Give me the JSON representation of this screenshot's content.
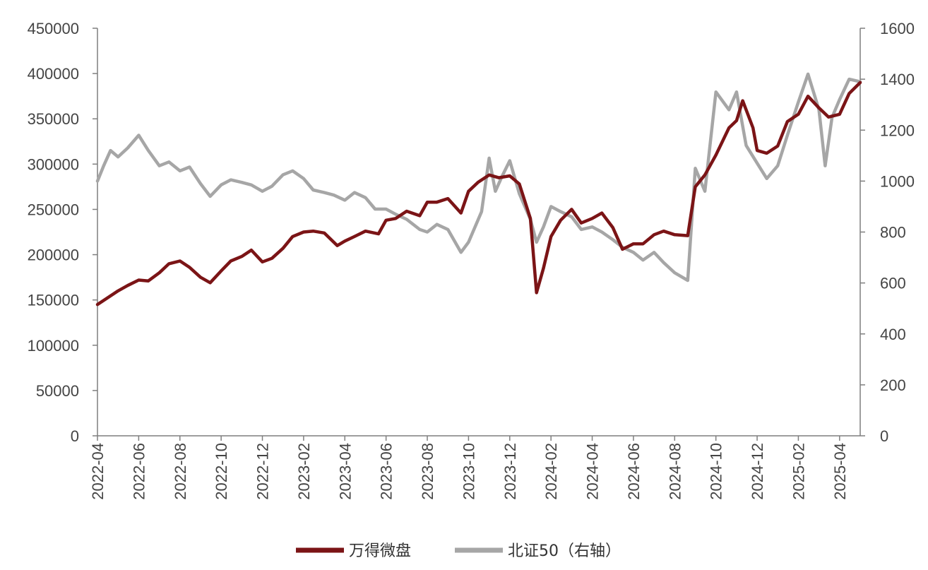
{
  "chart_data": {
    "type": "line",
    "x_axis": {
      "tick_labels": [
        "2022-04",
        "2022-06",
        "2022-08",
        "2022-10",
        "2022-12",
        "2023-02",
        "2023-04",
        "2023-06",
        "2023-08",
        "2023-10",
        "2023-12",
        "2024-02",
        "2024-04",
        "2024-06",
        "2024-08",
        "2024-10",
        "2024-12",
        "2025-02",
        "2025-04"
      ],
      "range": [
        "2022-04",
        "2025-05"
      ]
    },
    "y_left": {
      "ticks": [
        0,
        50000,
        100000,
        150000,
        200000,
        250000,
        300000,
        350000,
        400000,
        450000
      ],
      "range": [
        0,
        450000
      ]
    },
    "y_right": {
      "ticks": [
        0,
        200,
        400,
        600,
        800,
        1000,
        1200,
        1400,
        1600
      ],
      "range": [
        0,
        1600
      ]
    },
    "grid": false,
    "legend_position": "bottom",
    "series": [
      {
        "name": "万得微盘",
        "axis": "left",
        "color": "#7B1416",
        "points": [
          [
            "2022-04",
            145000
          ],
          [
            "2022-04-15",
            152000
          ],
          [
            "2022-05",
            160000
          ],
          [
            "2022-05-15",
            166000
          ],
          [
            "2022-06",
            172000
          ],
          [
            "2022-06-15",
            171000
          ],
          [
            "2022-07",
            180000
          ],
          [
            "2022-07-15",
            190000
          ],
          [
            "2022-08",
            193000
          ],
          [
            "2022-08-15",
            186000
          ],
          [
            "2022-09",
            175000
          ],
          [
            "2022-09-15",
            169000
          ],
          [
            "2022-10",
            182000
          ],
          [
            "2022-10-15",
            193000
          ],
          [
            "2022-11",
            198000
          ],
          [
            "2022-11-15",
            205000
          ],
          [
            "2022-12",
            192000
          ],
          [
            "2022-12-15",
            196000
          ],
          [
            "2023-01",
            207000
          ],
          [
            "2023-01-15",
            220000
          ],
          [
            "2023-02",
            225000
          ],
          [
            "2023-02-15",
            226000
          ],
          [
            "2023-03",
            224000
          ],
          [
            "2023-03-20",
            210000
          ],
          [
            "2023-04",
            215000
          ],
          [
            "2023-04-15",
            220000
          ],
          [
            "2023-05",
            226000
          ],
          [
            "2023-05-20",
            223000
          ],
          [
            "2023-06",
            238000
          ],
          [
            "2023-06-15",
            240000
          ],
          [
            "2023-07",
            248000
          ],
          [
            "2023-07-20",
            243000
          ],
          [
            "2023-08",
            258000
          ],
          [
            "2023-08-15",
            258000
          ],
          [
            "2023-09",
            262000
          ],
          [
            "2023-09-20",
            246000
          ],
          [
            "2023-10",
            270000
          ],
          [
            "2023-10-15",
            280000
          ],
          [
            "2023-11",
            288000
          ],
          [
            "2023-11-15",
            285000
          ],
          [
            "2023-12",
            287000
          ],
          [
            "2023-12-15",
            278000
          ],
          [
            "2024-01",
            240000
          ],
          [
            "2024-01-10",
            158000
          ],
          [
            "2024-01-20",
            185000
          ],
          [
            "2024-02",
            220000
          ],
          [
            "2024-02-15",
            238000
          ],
          [
            "2024-03",
            250000
          ],
          [
            "2024-03-15",
            235000
          ],
          [
            "2024-04",
            240000
          ],
          [
            "2024-04-15",
            246000
          ],
          [
            "2024-05",
            230000
          ],
          [
            "2024-05-15",
            206000
          ],
          [
            "2024-06",
            212000
          ],
          [
            "2024-06-15",
            212000
          ],
          [
            "2024-07",
            222000
          ],
          [
            "2024-07-15",
            226000
          ],
          [
            "2024-08",
            222000
          ],
          [
            "2024-08-20",
            221000
          ],
          [
            "2024-09",
            275000
          ],
          [
            "2024-09-15",
            288000
          ],
          [
            "2024-10",
            310000
          ],
          [
            "2024-10-20",
            340000
          ],
          [
            "2024-11",
            348000
          ],
          [
            "2024-11-10",
            370000
          ],
          [
            "2024-11-25",
            340000
          ],
          [
            "2024-12",
            315000
          ],
          [
            "2024-12-15",
            312000
          ],
          [
            "2025-01",
            320000
          ],
          [
            "2025-01-15",
            347000
          ],
          [
            "2025-02",
            355000
          ],
          [
            "2025-02-15",
            375000
          ],
          [
            "2025-03",
            362000
          ],
          [
            "2025-03-15",
            352000
          ],
          [
            "2025-04",
            355000
          ],
          [
            "2025-04-15",
            378000
          ],
          [
            "2025-05",
            390000
          ]
        ]
      },
      {
        "name": "北证50（右轴）",
        "axis": "right",
        "color": "#A6A6A6",
        "points": [
          [
            "2022-04",
            1000
          ],
          [
            "2022-04-10",
            1060
          ],
          [
            "2022-04-20",
            1120
          ],
          [
            "2022-05",
            1095
          ],
          [
            "2022-05-15",
            1130
          ],
          [
            "2022-06",
            1180
          ],
          [
            "2022-06-15",
            1120
          ],
          [
            "2022-07",
            1060
          ],
          [
            "2022-07-15",
            1075
          ],
          [
            "2022-08",
            1040
          ],
          [
            "2022-08-15",
            1055
          ],
          [
            "2022-09",
            990
          ],
          [
            "2022-09-15",
            940
          ],
          [
            "2022-10",
            985
          ],
          [
            "2022-10-15",
            1005
          ],
          [
            "2022-11",
            995
          ],
          [
            "2022-11-15",
            985
          ],
          [
            "2022-12",
            960
          ],
          [
            "2022-12-15",
            980
          ],
          [
            "2023-01",
            1025
          ],
          [
            "2023-01-15",
            1040
          ],
          [
            "2023-02",
            1010
          ],
          [
            "2023-02-15",
            965
          ],
          [
            "2023-03",
            955
          ],
          [
            "2023-03-15",
            945
          ],
          [
            "2023-04",
            925
          ],
          [
            "2023-04-15",
            955
          ],
          [
            "2023-05",
            935
          ],
          [
            "2023-05-15",
            890
          ],
          [
            "2023-06",
            890
          ],
          [
            "2023-06-15",
            870
          ],
          [
            "2023-07",
            850
          ],
          [
            "2023-07-20",
            810
          ],
          [
            "2023-08",
            800
          ],
          [
            "2023-08-15",
            830
          ],
          [
            "2023-09",
            810
          ],
          [
            "2023-09-20",
            720
          ],
          [
            "2023-10",
            760
          ],
          [
            "2023-10-20",
            880
          ],
          [
            "2023-11",
            1090
          ],
          [
            "2023-11-10",
            960
          ],
          [
            "2023-11-20",
            1020
          ],
          [
            "2023-12",
            1080
          ],
          [
            "2023-12-15",
            950
          ],
          [
            "2024-01",
            850
          ],
          [
            "2024-01-10",
            760
          ],
          [
            "2024-01-20",
            820
          ],
          [
            "2024-02",
            900
          ],
          [
            "2024-02-15",
            880
          ],
          [
            "2024-03",
            860
          ],
          [
            "2024-03-15",
            810
          ],
          [
            "2024-04",
            820
          ],
          [
            "2024-04-15",
            800
          ],
          [
            "2024-05",
            770
          ],
          [
            "2024-05-15",
            740
          ],
          [
            "2024-06",
            720
          ],
          [
            "2024-06-15",
            690
          ],
          [
            "2024-07",
            720
          ],
          [
            "2024-07-15",
            680
          ],
          [
            "2024-08",
            640
          ],
          [
            "2024-08-20",
            610
          ],
          [
            "2024-09",
            1050
          ],
          [
            "2024-09-15",
            960
          ],
          [
            "2024-10",
            1350
          ],
          [
            "2024-10-20",
            1280
          ],
          [
            "2024-11",
            1350
          ],
          [
            "2024-11-15",
            1140
          ],
          [
            "2024-12",
            1070
          ],
          [
            "2024-12-15",
            1010
          ],
          [
            "2025-01",
            1060
          ],
          [
            "2025-01-15",
            1180
          ],
          [
            "2025-02",
            1310
          ],
          [
            "2025-02-15",
            1420
          ],
          [
            "2025-03",
            1280
          ],
          [
            "2025-03-10",
            1060
          ],
          [
            "2025-03-20",
            1250
          ],
          [
            "2025-04",
            1320
          ],
          [
            "2025-04-15",
            1400
          ],
          [
            "2025-05",
            1390
          ]
        ]
      }
    ]
  }
}
